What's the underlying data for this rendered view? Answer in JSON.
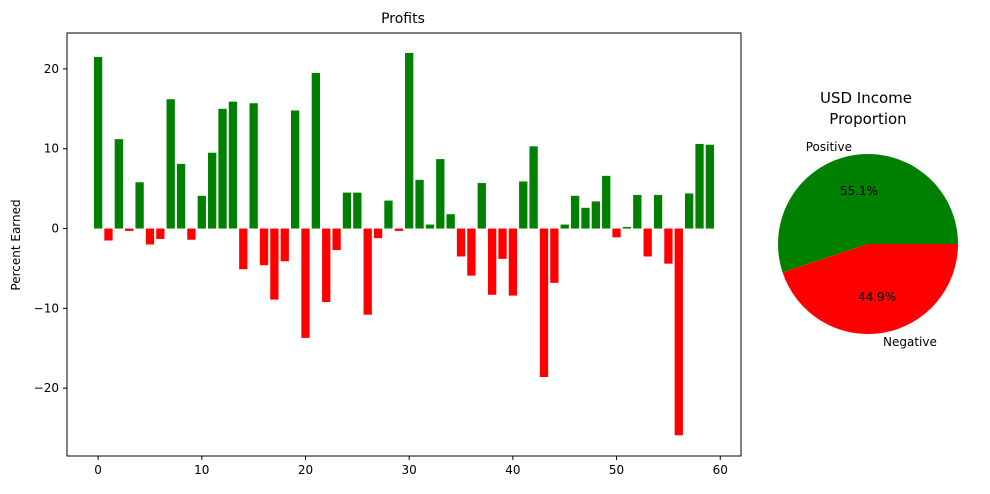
{
  "chart_data": [
    {
      "type": "bar",
      "title": "Profits",
      "xlabel": "",
      "ylabel": "Percent Earned",
      "xlim": [
        -3,
        62
      ],
      "ylim": [
        -28.5,
        24.5
      ],
      "xticks": [
        0,
        10,
        20,
        30,
        40,
        50,
        60
      ],
      "yticks": [
        -20,
        -10,
        0,
        10,
        20
      ],
      "xtick_labels": [
        "0",
        "10",
        "20",
        "30",
        "40",
        "50",
        "60"
      ],
      "ytick_labels": [
        "−20",
        "−10",
        "0",
        "10",
        "20"
      ],
      "positive_color": "#008000",
      "negative_color": "#ff0000",
      "x": [
        0,
        1,
        2,
        3,
        4,
        5,
        6,
        7,
        8,
        9,
        10,
        11,
        12,
        13,
        14,
        15,
        16,
        17,
        18,
        19,
        20,
        21,
        22,
        23,
        24,
        25,
        26,
        27,
        28,
        29,
        30,
        31,
        32,
        33,
        34,
        35,
        36,
        37,
        38,
        39,
        40,
        41,
        42,
        43,
        44,
        45,
        46,
        47,
        48,
        49,
        50,
        51,
        52,
        53,
        54,
        55,
        56,
        57,
        58,
        59
      ],
      "values": [
        21.5,
        -1.5,
        11.2,
        -0.3,
        5.8,
        -2.0,
        -1.3,
        16.2,
        8.1,
        -1.4,
        4.1,
        9.5,
        15.0,
        15.9,
        -5.1,
        15.7,
        -4.6,
        -8.9,
        -4.1,
        14.8,
        -13.7,
        19.5,
        -9.2,
        -2.7,
        4.5,
        4.5,
        -10.8,
        -1.2,
        3.5,
        -0.3,
        22.0,
        6.1,
        0.5,
        8.7,
        1.8,
        -3.5,
        -5.9,
        5.7,
        -8.3,
        -3.8,
        -8.4,
        5.9,
        10.3,
        -18.6,
        -6.8,
        0.5,
        4.1,
        2.6,
        3.4,
        6.6,
        -1.1,
        0.2,
        4.2,
        -3.5,
        4.2,
        -4.4,
        -25.9,
        4.4,
        10.6,
        10.5
      ]
    },
    {
      "type": "pie",
      "title_lines": [
        "USD Income",
        "Proportion"
      ],
      "labels": [
        "Positive",
        "Negative"
      ],
      "values": [
        55.1,
        44.9
      ],
      "pct_labels": [
        "55.1%",
        "44.9%"
      ],
      "colors": [
        "#008000",
        "#ff0000"
      ]
    }
  ]
}
